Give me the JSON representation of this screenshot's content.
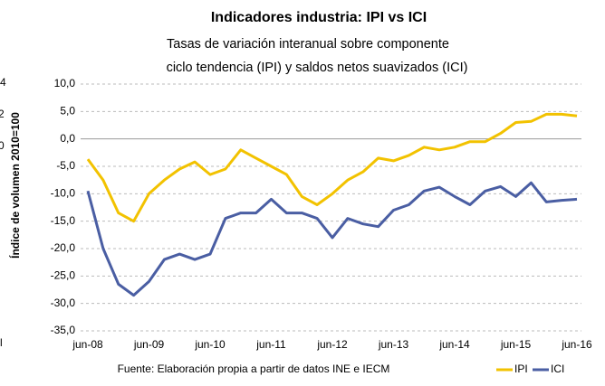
{
  "chart_data": {
    "type": "line",
    "title": "Indicadores industria: IPI vs ICI",
    "subtitle": [
      "Tasas de variación interanual sobre componente",
      "ciclo tendencia (IPI)  y saldos netos suavizados (ICI)"
    ],
    "source": "Fuente: Elaboración propia a partir de datos INE e IECM",
    "categories": [
      "jun-08",
      null,
      null,
      null,
      "jun-09",
      null,
      null,
      null,
      "jun-10",
      null,
      null,
      null,
      "jun-11",
      null,
      null,
      null,
      "jun-12",
      null,
      null,
      null,
      "jun-13",
      null,
      null,
      null,
      "jun-14",
      null,
      null,
      null,
      "jun-15",
      null,
      null,
      null,
      "jun-16"
    ],
    "series": [
      {
        "name": "IPI",
        "color": "#f2c200",
        "values": [
          -3.7,
          -7.5,
          -13.5,
          -15,
          -10,
          -7.5,
          -5.5,
          -4.2,
          -6.5,
          -5.5,
          -2,
          -3.5,
          -5,
          -6.5,
          -10.5,
          -12,
          -10,
          -7.5,
          -6,
          -3.5,
          -4,
          -3,
          -1.5,
          -2,
          -1.5,
          -0.5,
          -0.5,
          1,
          3,
          3.2,
          4.5,
          4.5,
          4.2
        ]
      },
      {
        "name": "ICI",
        "color": "#4a5ea3",
        "values": [
          -9.5,
          -20,
          -26.5,
          -28.5,
          -26,
          -22,
          -21,
          -22,
          -21,
          -14.5,
          -13.5,
          -13.5,
          -11,
          -13.5,
          -13.5,
          -14.5,
          -18,
          -14.5,
          -15.5,
          -16,
          -13,
          -12,
          -9.5,
          -8.8,
          -10.5,
          -12,
          -9.5,
          -8.7,
          -10.5,
          -8,
          -11.5,
          -11.2,
          -11
        ]
      }
    ],
    "ylim": [
      -35,
      10
    ],
    "yticks": [
      {
        "value": 10,
        "label": "10,0"
      },
      {
        "value": 5,
        "label": "5,0"
      },
      {
        "value": 0,
        "label": "0,0"
      },
      {
        "value": -5,
        "label": "-5,0"
      },
      {
        "value": -10,
        "label": "-10,0"
      },
      {
        "value": -15,
        "label": "-15,0"
      },
      {
        "value": -20,
        "label": "-20,0"
      },
      {
        "value": -25,
        "label": "-25,0"
      },
      {
        "value": -30,
        "label": "-30,0"
      },
      {
        "value": -35,
        "label": "-35,0"
      }
    ],
    "grid": true,
    "legend": "bottom-right",
    "clipped_axis": {
      "label": "Índice de volumen 2010=100",
      "ticks": [
        "4",
        "2",
        "0",
        "l"
      ]
    }
  }
}
